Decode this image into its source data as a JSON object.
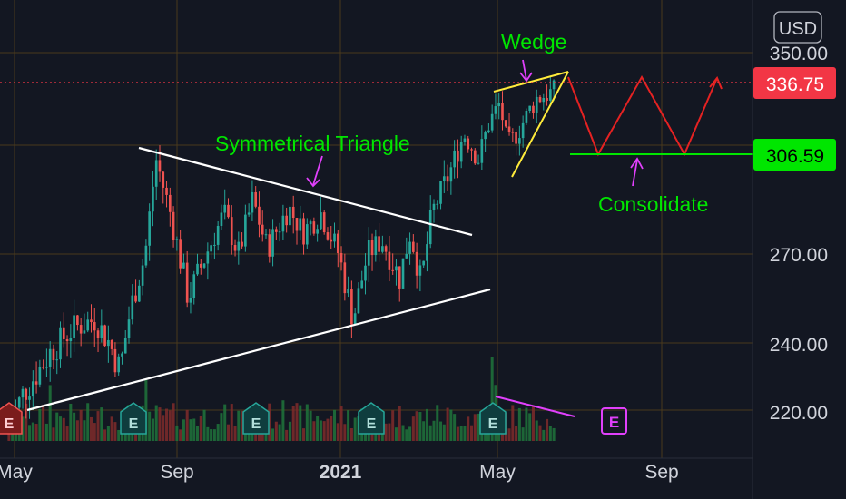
{
  "chart_data": {
    "type": "candlestick",
    "currency_label": "USD",
    "y_ticks": [
      220,
      240,
      270,
      350
    ],
    "y_tick_labels": [
      "220.00",
      "240.00",
      "270.00",
      "350.00"
    ],
    "x_tick_labels": [
      "May",
      "Sep",
      "2021",
      "May",
      "Sep"
    ],
    "price_labels": [
      {
        "value": 336.75,
        "text": "336.75",
        "color": "#f23645"
      },
      {
        "value": 306.59,
        "text": "306.59",
        "color": "#00e600"
      }
    ],
    "annotations": [
      {
        "text": "Wedge",
        "color": "#00e600"
      },
      {
        "text": "Symmetrical Triangle",
        "color": "#00e600"
      },
      {
        "text": "Consolidate",
        "color": "#00e600"
      }
    ],
    "earnings_markers": [
      "E",
      "E",
      "E",
      "E",
      "E",
      "E"
    ],
    "price_anchors": [
      [
        0,
        215
      ],
      [
        0.02,
        225
      ],
      [
        0.06,
        238
      ],
      [
        0.09,
        245
      ],
      [
        0.12,
        248
      ],
      [
        0.14,
        240
      ],
      [
        0.155,
        232
      ],
      [
        0.17,
        252
      ],
      [
        0.19,
        270
      ],
      [
        0.205,
        305
      ],
      [
        0.225,
        285
      ],
      [
        0.25,
        255
      ],
      [
        0.275,
        270
      ],
      [
        0.3,
        285
      ],
      [
        0.32,
        270
      ],
      [
        0.34,
        290
      ],
      [
        0.36,
        272
      ],
      [
        0.39,
        287
      ],
      [
        0.41,
        278
      ],
      [
        0.435,
        285
      ],
      [
        0.46,
        270
      ],
      [
        0.48,
        248
      ],
      [
        0.5,
        270
      ],
      [
        0.52,
        275
      ],
      [
        0.545,
        262
      ],
      [
        0.56,
        278
      ],
      [
        0.575,
        260
      ],
      [
        0.59,
        285
      ],
      [
        0.615,
        300
      ],
      [
        0.635,
        315
      ],
      [
        0.655,
        305
      ],
      [
        0.67,
        320
      ],
      [
        0.685,
        328
      ],
      [
        0.695,
        310
      ],
      [
        0.71,
        316
      ],
      [
        0.735,
        330
      ],
      [
        0.76,
        333
      ]
    ],
    "colors": {
      "up": "#26a69a",
      "down": "#ef5350"
    }
  }
}
